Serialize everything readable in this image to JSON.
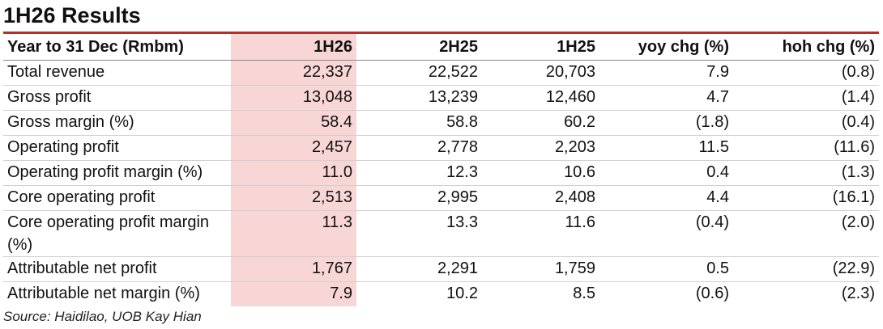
{
  "header": {
    "title": "1H26 Results"
  },
  "table": {
    "columns": [
      "Year to 31 Dec (Rmbm)",
      "1H26",
      "2H25",
      "1H25",
      "yoy chg (%)",
      "hoh chg (%)"
    ],
    "rows": [
      [
        "Total revenue",
        "22,337",
        "22,522",
        "20,703",
        "7.9",
        "(0.8)"
      ],
      [
        "Gross profit",
        "13,048",
        "13,239",
        "12,460",
        "4.7",
        "(1.4)"
      ],
      [
        "Gross margin (%)",
        "58.4",
        "58.8",
        "60.2",
        "(1.8)",
        "(0.4)"
      ],
      [
        "Operating profit",
        "2,457",
        "2,778",
        "2,203",
        "11.5",
        "(11.6)"
      ],
      [
        "Operating profit margin (%)",
        "11.0",
        "12.3",
        "10.6",
        "0.4",
        "(1.3)"
      ],
      [
        "Core operating profit",
        "2,513",
        "2,995",
        "2,408",
        "4.4",
        "(16.1)"
      ],
      [
        "Core operating profit margin (%)",
        "11.3",
        "13.3",
        "11.6",
        "(0.4)",
        "(2.0)"
      ],
      [
        "Attributable net profit",
        "1,767",
        "2,291",
        "1,759",
        "0.5",
        "(22.9)"
      ],
      [
        "Attributable net margin (%)",
        "7.9",
        "10.2",
        "8.5",
        "(0.6)",
        "(2.3)"
      ]
    ]
  },
  "source": "Source: Haidilao, UOB Kay Hian"
}
